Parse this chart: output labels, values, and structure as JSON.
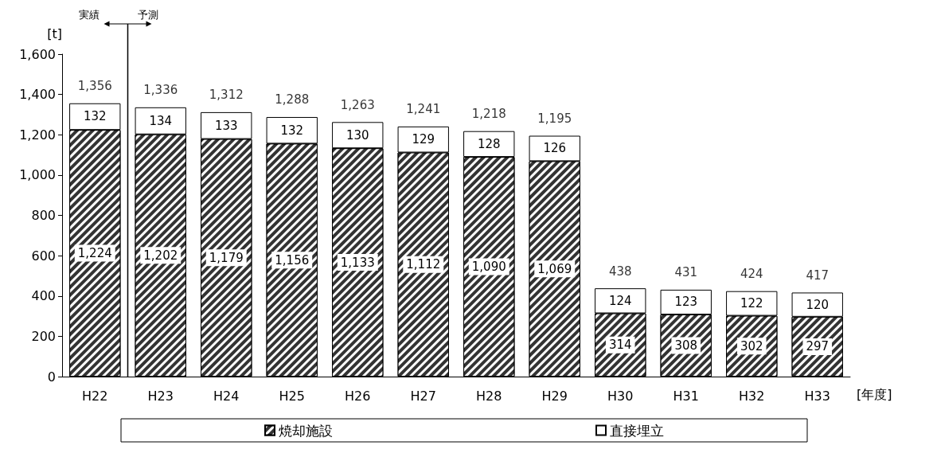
{
  "chart_data": {
    "type": "bar",
    "stacked": true,
    "xlabel": "[年度]",
    "ylabel": "[t]",
    "categories": [
      "H22",
      "H23",
      "H24",
      "H25",
      "H26",
      "H27",
      "H28",
      "H29",
      "H30",
      "H31",
      "H32",
      "H33"
    ],
    "series": [
      {
        "name": "焼却施設",
        "color": "#333333",
        "values": [
          1224,
          1202,
          1179,
          1156,
          1133,
          1112,
          1090,
          1069,
          314,
          308,
          302,
          297
        ],
        "value_labels": [
          "1,224",
          "1,202",
          "1,179",
          "1,156",
          "1,133",
          "1,112",
          "1,090",
          "1,069",
          "314",
          "308",
          "302",
          "297"
        ]
      },
      {
        "name": "直接埋立",
        "color": "#ffffff",
        "values": [
          132,
          134,
          133,
          132,
          130,
          129,
          128,
          126,
          124,
          123,
          122,
          120
        ],
        "value_labels": [
          "132",
          "134",
          "133",
          "132",
          "130",
          "129",
          "128",
          "126",
          "124",
          "123",
          "122",
          "120"
        ]
      }
    ],
    "totals": [
      "1,356",
      "1,336",
      "1,312",
      "1,288",
      "1,263",
      "1,241",
      "1,218",
      "1,195",
      "438",
      "431",
      "424",
      "417"
    ],
    "ylim": [
      0,
      1600
    ],
    "yticks": [
      0,
      200,
      400,
      600,
      800,
      {
        "value": 1000,
        "label": "1,000"
      },
      {
        "value": 1200,
        "label": "1,200"
      },
      {
        "value": 1400,
        "label": "1,400"
      },
      {
        "value": 1600,
        "label": "1,600"
      }
    ],
    "grid": false,
    "legend": "bottom",
    "annotations": [
      "実績",
      "予測"
    ]
  }
}
